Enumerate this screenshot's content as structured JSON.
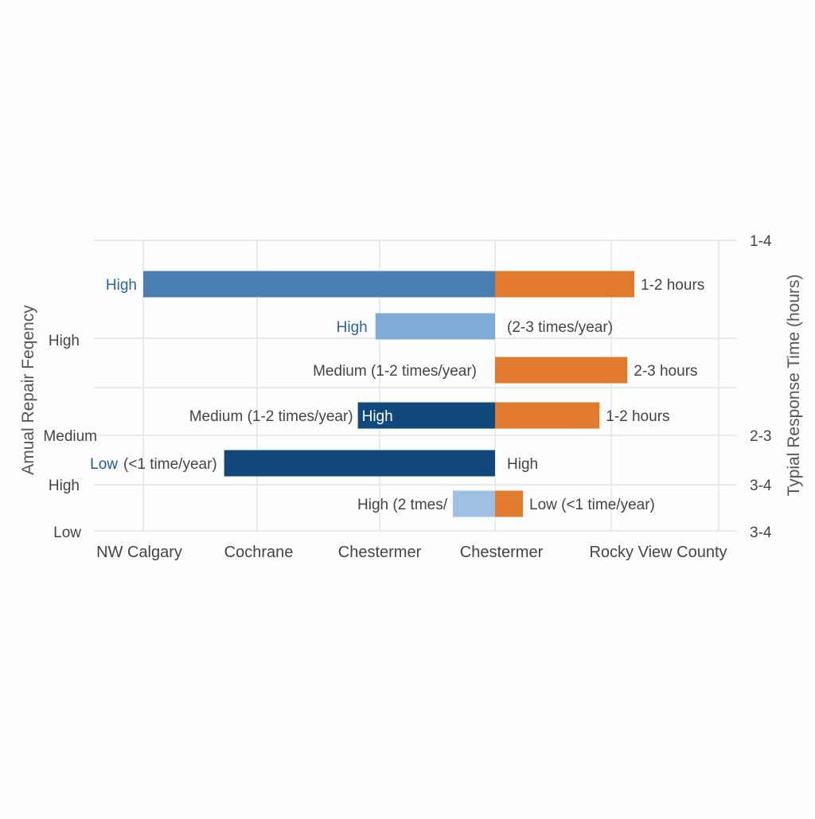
{
  "chart_data": {
    "type": "bar",
    "title": "",
    "ylabel_left": "Amual Repair Feqency",
    "ylabel_right": "Typial Response Time (hours)",
    "x_tick_labels": [
      "NW Calgary",
      "Cochrane",
      "Chestermer",
      "Chestermer",
      "Rocky View County"
    ],
    "y_tick_labels_left": [
      "High",
      "Medium",
      "High",
      "Low"
    ],
    "y_tick_labels_right": [
      "1-4",
      "2-3",
      "3-4",
      "3-4"
    ],
    "grid": true,
    "rows": [
      {
        "left_bar_label": "High",
        "left_text": "",
        "right_text": "1-2 hours",
        "left_color": "#4a7fb4",
        "right_color": "#e07a2c",
        "left_extent": 1.0,
        "right_extent": 1.0
      },
      {
        "left_bar_label": "High",
        "left_text": "",
        "right_text": "(2-3 times/year)",
        "left_color": "#7eacd6",
        "right_color": "",
        "left_extent": 0.34,
        "right_extent": 0
      },
      {
        "left_bar_label": "",
        "left_text": "Medium (1-2 times/year)",
        "right_text": "2-3 hours",
        "left_color": "",
        "right_color": "#e07a2c",
        "left_extent": 0,
        "right_extent": 0.95
      },
      {
        "left_bar_label": "High",
        "left_text": "Medium (1-2 times/year)",
        "right_text": "1-2 hours",
        "left_color": "#11497c",
        "right_color": "#e07a2c",
        "left_extent": 0.39,
        "right_extent": 0.75
      },
      {
        "left_bar_label": "Low",
        "left_text": "(<1 time/year)",
        "right_text": "High",
        "left_color": "#11497c",
        "right_color": "",
        "left_extent": 0.77,
        "right_extent": 0
      },
      {
        "left_bar_label": "",
        "left_text": "High (2 tmes/",
        "right_text": "Low (<1 time/year)",
        "left_color": "#9fc0e0",
        "right_color": "#e07a2c",
        "left_extent": 0.12,
        "right_extent": 0.2
      }
    ]
  }
}
